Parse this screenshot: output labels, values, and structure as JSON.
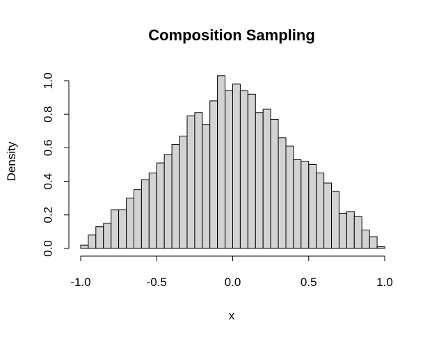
{
  "chart_data": {
    "type": "bar",
    "title": "Composition Sampling",
    "xlabel": "x",
    "ylabel": "Density",
    "xlim": [
      -1.0,
      1.0
    ],
    "ylim": [
      0.0,
      1.0
    ],
    "x_ticks": [
      "-1.0",
      "-0.5",
      "0.0",
      "0.5",
      "1.0"
    ],
    "x_tick_values": [
      -1.0,
      -0.5,
      0.0,
      0.5,
      1.0
    ],
    "y_ticks": [
      "0.0",
      "0.2",
      "0.4",
      "0.6",
      "0.8",
      "1.0"
    ],
    "y_tick_values": [
      0.0,
      0.2,
      0.4,
      0.6,
      0.8,
      1.0
    ],
    "bin_width": 0.05,
    "bin_start": -1.0,
    "values": [
      0.02,
      0.08,
      0.13,
      0.15,
      0.23,
      0.23,
      0.3,
      0.35,
      0.41,
      0.45,
      0.51,
      0.56,
      0.62,
      0.67,
      0.79,
      0.81,
      0.74,
      0.88,
      1.03,
      0.94,
      0.98,
      0.94,
      0.92,
      0.81,
      0.83,
      0.77,
      0.66,
      0.61,
      0.53,
      0.52,
      0.5,
      0.45,
      0.39,
      0.34,
      0.21,
      0.22,
      0.19,
      0.11,
      0.07,
      0.01
    ],
    "bar_color": "#d3d3d3",
    "bar_edge_color": "#000000",
    "grid": false,
    "legend": "none"
  }
}
